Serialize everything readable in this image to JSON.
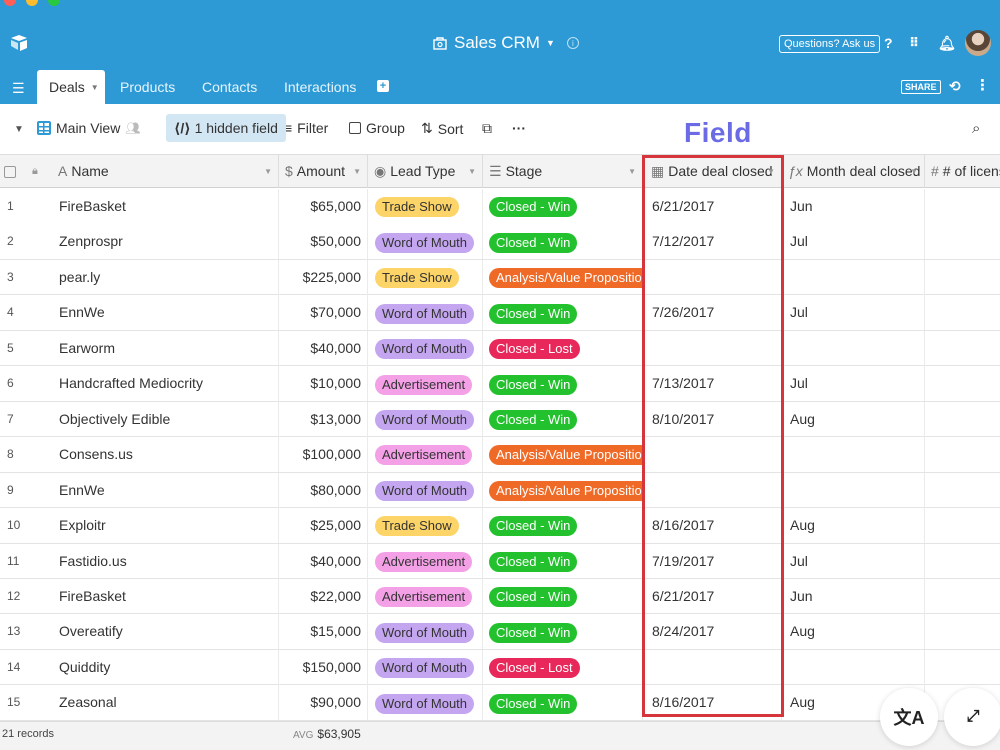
{
  "app": {
    "base_name": "Sales CRM",
    "help_button": "Questions? Ask us",
    "share_button": "SHARE",
    "colors": {
      "primary": "#2d9ad6",
      "highlight": "#d6353b",
      "annotation": "#6b6be6"
    }
  },
  "tabs": [
    {
      "label": "Deals",
      "active": true
    },
    {
      "label": "Products"
    },
    {
      "label": "Contacts"
    },
    {
      "label": "Interactions"
    }
  ],
  "viewbar": {
    "view_name": "Main View",
    "hidden_fields": "1 hidden field",
    "filter": "Filter",
    "group": "Group",
    "sort": "Sort",
    "more": "···"
  },
  "annotation": {
    "label": "Field"
  },
  "columns": {
    "name": "Name",
    "amount": "Amount",
    "lead_type": "Lead Type",
    "stage": "Stage",
    "date_closed": "Date deal closed",
    "month_closed": "Month deal closed",
    "licenses": "# of licens"
  },
  "pill_colors": {
    "Trade Show": {
      "bg": "#fcd468",
      "fg": "#333"
    },
    "Word of Mouth": {
      "bg": "#c4a6f0",
      "fg": "#333"
    },
    "Advertisement": {
      "bg": "#f3a0e6",
      "fg": "#333"
    },
    "Closed - Win": {
      "bg": "#24c12e",
      "fg": "#fff"
    },
    "Closed - Lost": {
      "bg": "#e8285a",
      "fg": "#fff"
    },
    "Analysis/Value Proposition": {
      "bg": "#f06a27",
      "fg": "#fff"
    }
  },
  "rows": [
    {
      "num": "1",
      "name": "FireBasket",
      "amount": "$65,000",
      "lead": "Trade Show",
      "stage": "Closed - Win",
      "date": "6/21/2017",
      "month": "Jun"
    },
    {
      "num": "2",
      "name": "Zenprospr",
      "amount": "$50,000",
      "lead": "Word of Mouth",
      "stage": "Closed - Win",
      "date": "7/12/2017",
      "month": "Jul"
    },
    {
      "num": "3",
      "name": "pear.ly",
      "amount": "$225,000",
      "lead": "Trade Show",
      "stage": "Analysis/Value Proposition",
      "date": "",
      "month": ""
    },
    {
      "num": "4",
      "name": "EnnWe",
      "amount": "$70,000",
      "lead": "Word of Mouth",
      "stage": "Closed - Win",
      "date": "7/26/2017",
      "month": "Jul"
    },
    {
      "num": "5",
      "name": "Earworm",
      "amount": "$40,000",
      "lead": "Word of Mouth",
      "stage": "Closed - Lost",
      "date": "",
      "month": ""
    },
    {
      "num": "6",
      "name": "Handcrafted Mediocrity",
      "amount": "$10,000",
      "lead": "Advertisement",
      "stage": "Closed - Win",
      "date": "7/13/2017",
      "month": "Jul"
    },
    {
      "num": "7",
      "name": "Objectively Edible",
      "amount": "$13,000",
      "lead": "Word of Mouth",
      "stage": "Closed - Win",
      "date": "8/10/2017",
      "month": "Aug"
    },
    {
      "num": "8",
      "name": "Consens.us",
      "amount": "$100,000",
      "lead": "Advertisement",
      "stage": "Analysis/Value Proposition",
      "date": "",
      "month": ""
    },
    {
      "num": "9",
      "name": "EnnWe",
      "amount": "$80,000",
      "lead": "Word of Mouth",
      "stage": "Analysis/Value Proposition",
      "date": "",
      "month": ""
    },
    {
      "num": "10",
      "name": "Exploitr",
      "amount": "$25,000",
      "lead": "Trade Show",
      "stage": "Closed - Win",
      "date": "8/16/2017",
      "month": "Aug"
    },
    {
      "num": "11",
      "name": "Fastidio.us",
      "amount": "$40,000",
      "lead": "Advertisement",
      "stage": "Closed - Win",
      "date": "7/19/2017",
      "month": "Jul"
    },
    {
      "num": "12",
      "name": "FireBasket",
      "amount": "$22,000",
      "lead": "Advertisement",
      "stage": "Closed - Win",
      "date": "6/21/2017",
      "month": "Jun"
    },
    {
      "num": "13",
      "name": "Overeatify",
      "amount": "$15,000",
      "lead": "Word of Mouth",
      "stage": "Closed - Win",
      "date": "8/24/2017",
      "month": "Aug"
    },
    {
      "num": "14",
      "name": "Quiddity",
      "amount": "$150,000",
      "lead": "Word of Mouth",
      "stage": "Closed - Lost",
      "date": "",
      "month": ""
    },
    {
      "num": "15",
      "name": "Zeasonal",
      "amount": "$90,000",
      "lead": "Word of Mouth",
      "stage": "Closed - Win",
      "date": "8/16/2017",
      "month": "Aug"
    }
  ],
  "footer": {
    "records": "21 records",
    "avg_label": "AVG",
    "avg_value": "$63,905"
  }
}
